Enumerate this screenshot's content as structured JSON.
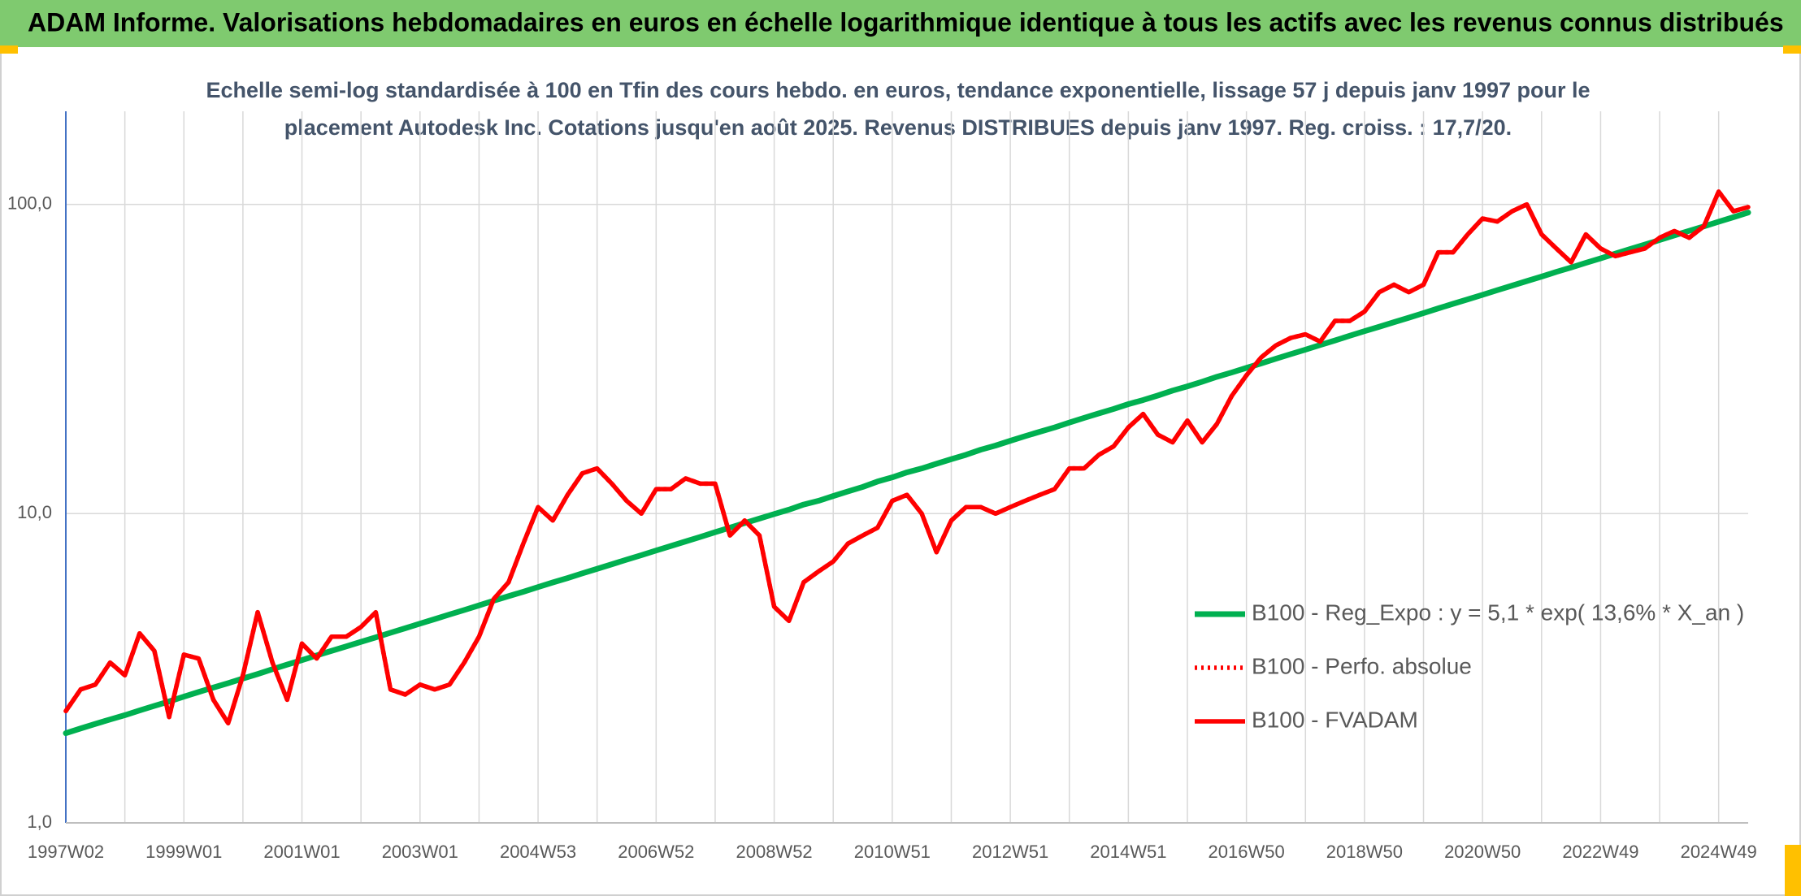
{
  "chart_data": {
    "type": "line",
    "title": "ADAM Informe. Valorisations hebdomadaires en euros en échelle logarithmique identique à tous les actifs avec les revenus connus distribués",
    "subtitle": [
      "Echelle semi-log standardisée à 100 en Tfin des cours hebdo. en euros, tendance exponentielle, lissage 57 j depuis janv 1997 pour le",
      "placement Autodesk Inc. Cotations jusqu'en août 2025. Revenus DISTRIBUES depuis janv 1997. Reg. croiss. : 17,7/20."
    ],
    "log_scale": true,
    "grid": true,
    "legend": "right",
    "ylim": [
      1,
      200
    ],
    "yticks": [
      {
        "value": 1,
        "label": "1,0"
      },
      {
        "value": 10,
        "label": "10,0"
      },
      {
        "value": 100,
        "label": "100,0"
      }
    ],
    "categories": [
      "1997W02",
      null,
      null,
      null,
      null,
      null,
      null,
      null,
      "1999W01",
      null,
      null,
      null,
      null,
      null,
      null,
      null,
      "2001W01",
      null,
      null,
      null,
      null,
      null,
      null,
      null,
      "2003W01",
      null,
      null,
      null,
      null,
      null,
      null,
      null,
      "2004W53",
      null,
      null,
      null,
      null,
      null,
      null,
      null,
      "2006W52",
      null,
      null,
      null,
      null,
      null,
      null,
      null,
      "2008W52",
      null,
      null,
      null,
      null,
      null,
      null,
      null,
      "2010W51",
      null,
      null,
      null,
      null,
      null,
      null,
      null,
      "2012W51",
      null,
      null,
      null,
      null,
      null,
      null,
      null,
      "2014W51",
      null,
      null,
      null,
      null,
      null,
      null,
      null,
      "2016W50",
      null,
      null,
      null,
      null,
      null,
      null,
      null,
      "2018W50",
      null,
      null,
      null,
      null,
      null,
      null,
      null,
      "2020W50",
      null,
      null,
      null,
      null,
      null,
      null,
      null,
      "2022W49",
      null,
      null,
      null,
      null,
      null,
      null,
      null,
      "2024W49",
      null,
      null
    ],
    "series": [
      {
        "name": "B100 - Reg_Expo : y = 5,1 * exp( 13,6% *  X_an )",
        "color": "#00b050",
        "style": "solid",
        "values": [
          1.95,
          2.02,
          2.09,
          2.16,
          2.23,
          2.31,
          2.39,
          2.47,
          2.56,
          2.65,
          2.74,
          2.83,
          2.93,
          3.03,
          3.14,
          3.25,
          3.36,
          3.48,
          3.6,
          3.72,
          3.85,
          3.98,
          4.12,
          4.26,
          4.41,
          4.56,
          4.72,
          4.88,
          5.05,
          5.23,
          5.41,
          5.59,
          5.79,
          5.99,
          6.19,
          6.41,
          6.63,
          6.86,
          7.1,
          7.34,
          7.6,
          7.86,
          8.13,
          8.41,
          8.71,
          9.01,
          9.32,
          9.64,
          9.97,
          10.3,
          10.7,
          11.0,
          11.4,
          11.8,
          12.2,
          12.7,
          13.1,
          13.6,
          14.0,
          14.5,
          15.0,
          15.5,
          16.1,
          16.6,
          17.2,
          17.8,
          18.4,
          19.0,
          19.7,
          20.4,
          21.1,
          21.8,
          22.6,
          23.3,
          24.1,
          25.0,
          25.8,
          26.7,
          27.7,
          28.6,
          29.6,
          30.6,
          31.7,
          32.8,
          33.9,
          35.1,
          36.3,
          37.6,
          38.9,
          40.2,
          41.6,
          43.0,
          44.5,
          46.1,
          47.7,
          49.3,
          51.0,
          52.8,
          54.6,
          56.5,
          58.4,
          60.5,
          62.5,
          64.7,
          66.9,
          69.3,
          71.7,
          74.1,
          76.7,
          79.4,
          82.1,
          84.9,
          87.9,
          90.9,
          94.1
        ]
      },
      {
        "name": "B100 - Perfo. absolue",
        "color": "#ff0000",
        "style": "dotted",
        "values": [
          2.3,
          2.7,
          2.8,
          3.3,
          3.0,
          4.1,
          3.6,
          2.2,
          3.5,
          3.4,
          2.5,
          2.1,
          3.0,
          4.8,
          3.3,
          2.5,
          3.8,
          3.4,
          4.0,
          4.0,
          4.3,
          4.8,
          2.7,
          2.6,
          2.8,
          2.7,
          2.8,
          3.3,
          4.0,
          5.3,
          6.0,
          8.0,
          10.5,
          9.5,
          11.5,
          13.5,
          14.0,
          12.5,
          11.0,
          10.0,
          12.0,
          12.0,
          13.0,
          12.5,
          12.5,
          8.5,
          9.5,
          8.5,
          5.0,
          4.5,
          6.0,
          6.5,
          7.0,
          8.0,
          8.5,
          9.0,
          11.0,
          11.5,
          10.0,
          7.5,
          9.5,
          10.5,
          10.5,
          10.0,
          10.5,
          11.0,
          11.5,
          12.0,
          14.0,
          14.0,
          15.5,
          16.5,
          19.0,
          21.0,
          18.0,
          17.0,
          20.0,
          17.0,
          19.5,
          24.0,
          28.0,
          32.0,
          35.0,
          37.0,
          38.0,
          36.0,
          42.0,
          42.0,
          45.0,
          52.0,
          55.0,
          52.0,
          55.0,
          70.0,
          70.0,
          80.0,
          90.0,
          88.0,
          95.0,
          100.0,
          80.0,
          72.0,
          65.0,
          80.0,
          72.0,
          68.0,
          70.0,
          72.0,
          78.0,
          82.0,
          78.0,
          85.0,
          110.0,
          95.0,
          98.0
        ]
      },
      {
        "name": "B100 - FVADAM",
        "color": "#ff0000",
        "style": "solid",
        "values": [
          2.3,
          2.7,
          2.8,
          3.3,
          3.0,
          4.1,
          3.6,
          2.2,
          3.5,
          3.4,
          2.5,
          2.1,
          3.0,
          4.8,
          3.3,
          2.5,
          3.8,
          3.4,
          4.0,
          4.0,
          4.3,
          4.8,
          2.7,
          2.6,
          2.8,
          2.7,
          2.8,
          3.3,
          4.0,
          5.3,
          6.0,
          8.0,
          10.5,
          9.5,
          11.5,
          13.5,
          14.0,
          12.5,
          11.0,
          10.0,
          12.0,
          12.0,
          13.0,
          12.5,
          12.5,
          8.5,
          9.5,
          8.5,
          5.0,
          4.5,
          6.0,
          6.5,
          7.0,
          8.0,
          8.5,
          9.0,
          11.0,
          11.5,
          10.0,
          7.5,
          9.5,
          10.5,
          10.5,
          10.0,
          10.5,
          11.0,
          11.5,
          12.0,
          14.0,
          14.0,
          15.5,
          16.5,
          19.0,
          21.0,
          18.0,
          17.0,
          20.0,
          17.0,
          19.5,
          24.0,
          28.0,
          32.0,
          35.0,
          37.0,
          38.0,
          36.0,
          42.0,
          42.0,
          45.0,
          52.0,
          55.0,
          52.0,
          55.0,
          70.0,
          70.0,
          80.0,
          90.0,
          88.0,
          95.0,
          100.0,
          80.0,
          72.0,
          65.0,
          80.0,
          72.0,
          68.0,
          70.0,
          72.0,
          78.0,
          82.0,
          78.0,
          85.0,
          110.0,
          95.0,
          98.0
        ]
      }
    ]
  }
}
